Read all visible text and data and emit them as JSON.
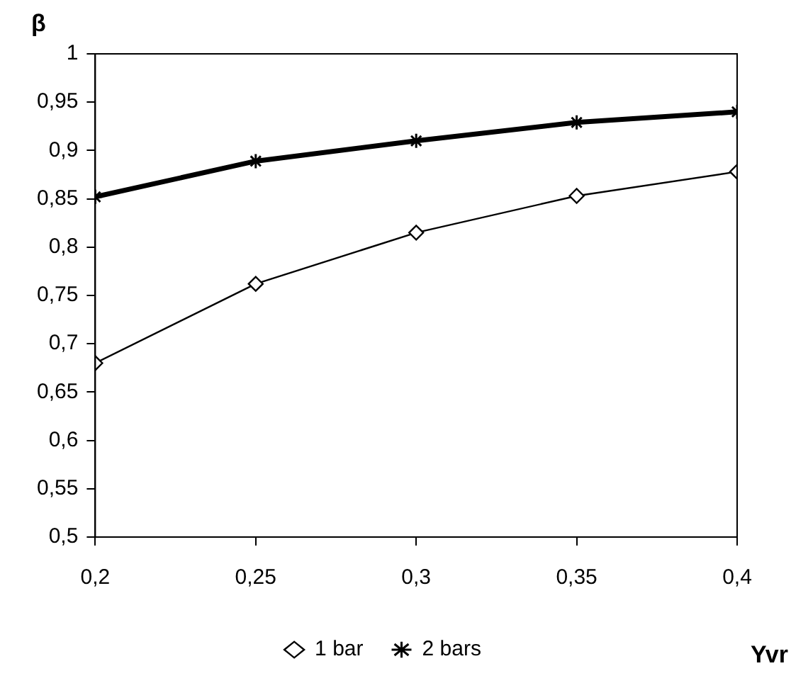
{
  "chart_data": {
    "type": "line",
    "xlabel": "Yvr",
    "ylabel": "β",
    "x": [
      0.2,
      0.25,
      0.3,
      0.35,
      0.4
    ],
    "series": [
      {
        "name": "1 bar",
        "color": "#000000",
        "marker": "diamond",
        "values": [
          0.68,
          0.762,
          0.815,
          0.853,
          0.878
        ]
      },
      {
        "name": "2 bars",
        "color": "#000000",
        "marker": "cross",
        "values": [
          0.852,
          0.889,
          0.91,
          0.929,
          0.94
        ]
      }
    ],
    "xlim": [
      0.2,
      0.4
    ],
    "xticks": [
      {
        "value": 0.2,
        "label": "0,2"
      },
      {
        "value": 0.25,
        "label": "0,25"
      },
      {
        "value": 0.3,
        "label": "0,3"
      },
      {
        "value": 0.35,
        "label": "0,35"
      },
      {
        "value": 0.4,
        "label": "0,4"
      }
    ],
    "ylim": [
      0.5,
      1
    ],
    "yticks": [
      {
        "value": 0.5,
        "label": "0,5"
      },
      {
        "value": 0.55,
        "label": "0,55"
      },
      {
        "value": 0.6,
        "label": "0,6"
      },
      {
        "value": 0.65,
        "label": "0,65"
      },
      {
        "value": 0.7,
        "label": "0,7"
      },
      {
        "value": 0.75,
        "label": "0,75"
      },
      {
        "value": 0.8,
        "label": "0,8"
      },
      {
        "value": 0.85,
        "label": "0,85"
      },
      {
        "value": 0.9,
        "label": "0,9"
      },
      {
        "value": 0.95,
        "label": "0,95"
      },
      1
    ],
    "grid": false,
    "legend": "bottom",
    "line_style": "solid"
  }
}
